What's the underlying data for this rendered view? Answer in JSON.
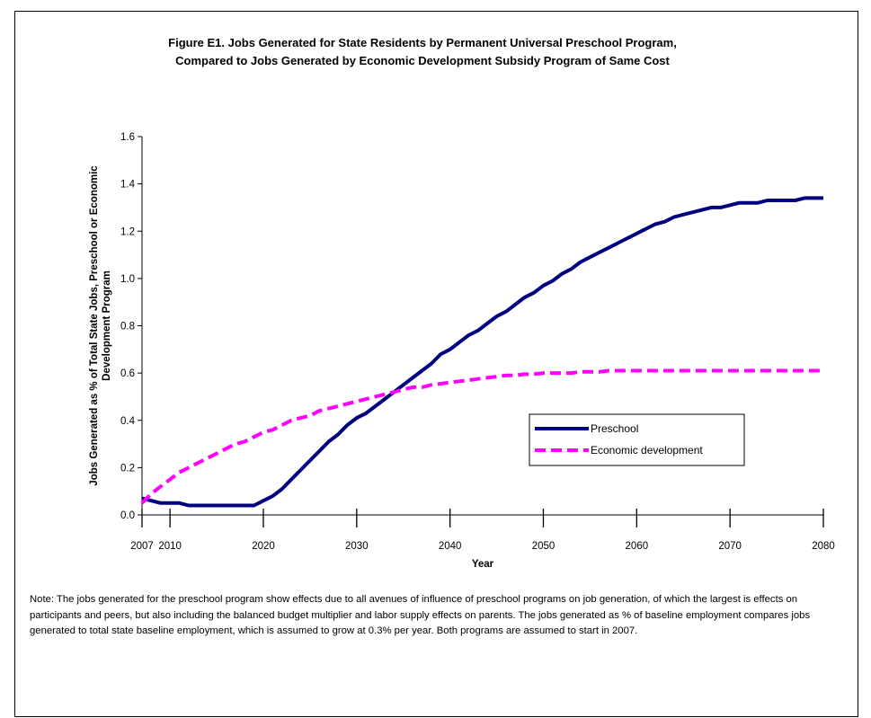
{
  "title": {
    "line1": "Figure E1.  Jobs Generated for State Residents by Permanent Universal Preschool Program,",
    "line2": "Compared to Jobs Generated by Economic Development Subsidy Program of Same Cost"
  },
  "note": "Note:  The jobs generated for the preschool program show effects due to all avenues of influence of preschool programs on job generation, of which the largest is effects on participants and peers, but also including the balanced budget multiplier and labor supply effects on parents. The jobs generated as % of baseline employment compares jobs generated to total state baseline employment, which is assumed to grow at 0.3% per year. Both programs are assumed to start in 2007.",
  "chart_data": {
    "type": "line",
    "title": "Figure E1.  Jobs Generated for State Residents by Permanent Universal Preschool Program, Compared to Jobs Generated by Economic Development Subsidy Program of Same Cost",
    "xlabel": "Year",
    "ylabel_lines": [
      "Jobs Generated as % of Total State Jobs, Preschool or Economic",
      "Development Program"
    ],
    "xlim": [
      2007,
      2080
    ],
    "ylim": [
      0,
      1.6
    ],
    "x_ticks": [
      "2007",
      "2010",
      "2020",
      "2030",
      "2040",
      "2050",
      "2060",
      "2070",
      "2080"
    ],
    "y_ticks": [
      "0.0",
      "0.2",
      "0.4",
      "0.6",
      "0.8",
      "1.0",
      "1.2",
      "1.4",
      "1.6"
    ],
    "grid": false,
    "legend_position": "lower-right",
    "series": [
      {
        "name": "Preschool",
        "color": "#000080",
        "style": "solid",
        "x": [
          2007,
          2008,
          2009,
          2010,
          2011,
          2012,
          2013,
          2014,
          2015,
          2016,
          2017,
          2018,
          2019,
          2020,
          2021,
          2022,
          2023,
          2024,
          2025,
          2026,
          2027,
          2028,
          2029,
          2030,
          2031,
          2032,
          2033,
          2034,
          2035,
          2036,
          2037,
          2038,
          2039,
          2040,
          2041,
          2042,
          2043,
          2044,
          2045,
          2046,
          2047,
          2048,
          2049,
          2050,
          2051,
          2052,
          2053,
          2054,
          2055,
          2056,
          2057,
          2058,
          2059,
          2060,
          2061,
          2062,
          2063,
          2064,
          2065,
          2066,
          2067,
          2068,
          2069,
          2070,
          2071,
          2072,
          2073,
          2074,
          2075,
          2076,
          2077,
          2078,
          2079,
          2080
        ],
        "values": [
          0.07,
          0.06,
          0.05,
          0.05,
          0.05,
          0.04,
          0.04,
          0.04,
          0.04,
          0.04,
          0.04,
          0.04,
          0.04,
          0.06,
          0.08,
          0.11,
          0.15,
          0.19,
          0.23,
          0.27,
          0.31,
          0.34,
          0.38,
          0.41,
          0.43,
          0.46,
          0.49,
          0.52,
          0.55,
          0.58,
          0.61,
          0.64,
          0.68,
          0.7,
          0.73,
          0.76,
          0.78,
          0.81,
          0.84,
          0.86,
          0.89,
          0.92,
          0.94,
          0.97,
          0.99,
          1.02,
          1.04,
          1.07,
          1.09,
          1.11,
          1.13,
          1.15,
          1.17,
          1.19,
          1.21,
          1.23,
          1.24,
          1.26,
          1.27,
          1.28,
          1.29,
          1.3,
          1.3,
          1.31,
          1.32,
          1.32,
          1.32,
          1.33,
          1.33,
          1.33,
          1.33,
          1.34,
          1.34,
          1.34
        ]
      },
      {
        "name": "Economic development",
        "color": "#ff00ff",
        "style": "dashed",
        "x": [
          2007,
          2008,
          2009,
          2010,
          2011,
          2012,
          2013,
          2014,
          2015,
          2016,
          2017,
          2018,
          2019,
          2020,
          2021,
          2022,
          2023,
          2024,
          2025,
          2026,
          2027,
          2028,
          2029,
          2030,
          2031,
          2032,
          2033,
          2034,
          2035,
          2036,
          2037,
          2038,
          2039,
          2040,
          2041,
          2042,
          2043,
          2044,
          2045,
          2046,
          2047,
          2048,
          2049,
          2050,
          2051,
          2052,
          2053,
          2054,
          2055,
          2056,
          2057,
          2058,
          2059,
          2060,
          2061,
          2062,
          2063,
          2064,
          2065,
          2066,
          2067,
          2068,
          2069,
          2070,
          2071,
          2072,
          2073,
          2074,
          2075,
          2076,
          2077,
          2078,
          2079,
          2080
        ],
        "values": [
          0.05,
          0.09,
          0.12,
          0.15,
          0.18,
          0.2,
          0.22,
          0.24,
          0.26,
          0.28,
          0.3,
          0.31,
          0.33,
          0.35,
          0.36,
          0.38,
          0.4,
          0.41,
          0.42,
          0.44,
          0.45,
          0.46,
          0.47,
          0.48,
          0.49,
          0.5,
          0.51,
          0.52,
          0.53,
          0.54,
          0.54,
          0.55,
          0.555,
          0.56,
          0.565,
          0.57,
          0.575,
          0.58,
          0.585,
          0.59,
          0.59,
          0.595,
          0.595,
          0.6,
          0.6,
          0.6,
          0.6,
          0.605,
          0.605,
          0.605,
          0.61,
          0.61,
          0.61,
          0.61,
          0.61,
          0.61,
          0.61,
          0.61,
          0.61,
          0.61,
          0.61,
          0.61,
          0.61,
          0.61,
          0.61,
          0.61,
          0.61,
          0.61,
          0.61,
          0.61,
          0.61,
          0.61,
          0.61,
          0.61
        ]
      }
    ]
  }
}
